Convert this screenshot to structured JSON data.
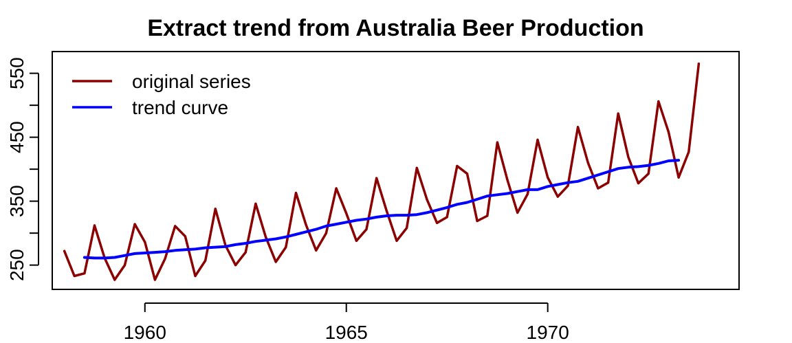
{
  "chart_data": {
    "type": "line",
    "title": "Extract trend from Australia Beer Production",
    "xlabel": "",
    "ylabel": "",
    "xlim": [
      1957.7,
      1974.75
    ],
    "ylim": [
      212,
      584
    ],
    "x_ticks": [
      1960,
      1965,
      1970
    ],
    "y_ticks": [
      250,
      300,
      350,
      400,
      450,
      500,
      550
    ],
    "y_tick_labels": [
      "250",
      "",
      "350",
      "",
      "450",
      "",
      "550"
    ],
    "legend_position": "top-left",
    "grid": false,
    "series": [
      {
        "name": "original series",
        "color": "#8B0000",
        "x": [
          1958.0,
          1958.25,
          1958.5,
          1958.75,
          1959.0,
          1959.25,
          1959.5,
          1959.75,
          1960.0,
          1960.25,
          1960.5,
          1960.75,
          1961.0,
          1961.25,
          1961.5,
          1961.75,
          1962.0,
          1962.25,
          1962.5,
          1962.75,
          1963.0,
          1963.25,
          1963.5,
          1963.75,
          1964.0,
          1964.25,
          1964.5,
          1964.75,
          1965.0,
          1965.25,
          1965.5,
          1965.75,
          1966.0,
          1966.25,
          1966.5,
          1966.75,
          1967.0,
          1967.25,
          1967.5,
          1967.75,
          1968.0,
          1968.25,
          1968.5,
          1968.75,
          1969.0,
          1969.25,
          1969.5,
          1969.75,
          1970.0,
          1970.25,
          1970.5,
          1970.75,
          1971.0,
          1971.25,
          1971.5,
          1971.75,
          1972.0,
          1972.25,
          1972.5,
          1972.75,
          1973.0,
          1973.25,
          1973.5,
          1973.75
        ],
        "values": [
          272,
          233,
          237,
          312,
          261,
          227,
          250,
          314,
          286,
          227,
          260,
          311,
          295,
          233,
          257,
          338,
          281,
          250,
          270,
          346,
          294,
          255,
          278,
          363,
          313,
          273,
          300,
          370,
          331,
          288,
          306,
          386,
          335,
          288,
          308,
          402,
          353,
          316,
          325,
          405,
          393,
          319,
          327,
          442,
          383,
          332,
          361,
          446,
          387,
          357,
          374,
          466,
          410,
          370,
          379,
          487,
          419,
          378,
          393,
          506,
          458,
          387,
          427,
          565
        ]
      },
      {
        "name": "trend curve",
        "color": "#0000FF",
        "x": [
          1958.5,
          1958.75,
          1959.0,
          1959.25,
          1959.5,
          1959.75,
          1960.0,
          1960.25,
          1960.5,
          1960.75,
          1961.0,
          1961.25,
          1961.5,
          1961.75,
          1962.0,
          1962.25,
          1962.5,
          1962.75,
          1963.0,
          1963.25,
          1963.5,
          1963.75,
          1964.0,
          1964.25,
          1964.5,
          1964.75,
          1965.0,
          1965.25,
          1965.5,
          1965.75,
          1966.0,
          1966.25,
          1966.5,
          1966.75,
          1967.0,
          1967.25,
          1967.5,
          1967.75,
          1968.0,
          1968.25,
          1968.5,
          1968.75,
          1969.0,
          1969.25,
          1969.5,
          1969.75,
          1970.0,
          1970.25,
          1970.5,
          1970.75,
          1971.0,
          1971.25,
          1971.5,
          1971.75,
          1972.0,
          1972.25,
          1972.5,
          1972.75,
          1973.0,
          1973.25
        ],
        "values": [
          262,
          261,
          261,
          262,
          265,
          268,
          269,
          270,
          271,
          273,
          274,
          275,
          277,
          278,
          279,
          282,
          284,
          287,
          289,
          291,
          294,
          298,
          302,
          306,
          311,
          314,
          317,
          320,
          322,
          325,
          327,
          328,
          328,
          329,
          332,
          336,
          340,
          345,
          348,
          353,
          358,
          360,
          362,
          365,
          368,
          368,
          373,
          376,
          379,
          381,
          386,
          391,
          396,
          401,
          403,
          404,
          406,
          409,
          413,
          414
        ]
      }
    ]
  }
}
